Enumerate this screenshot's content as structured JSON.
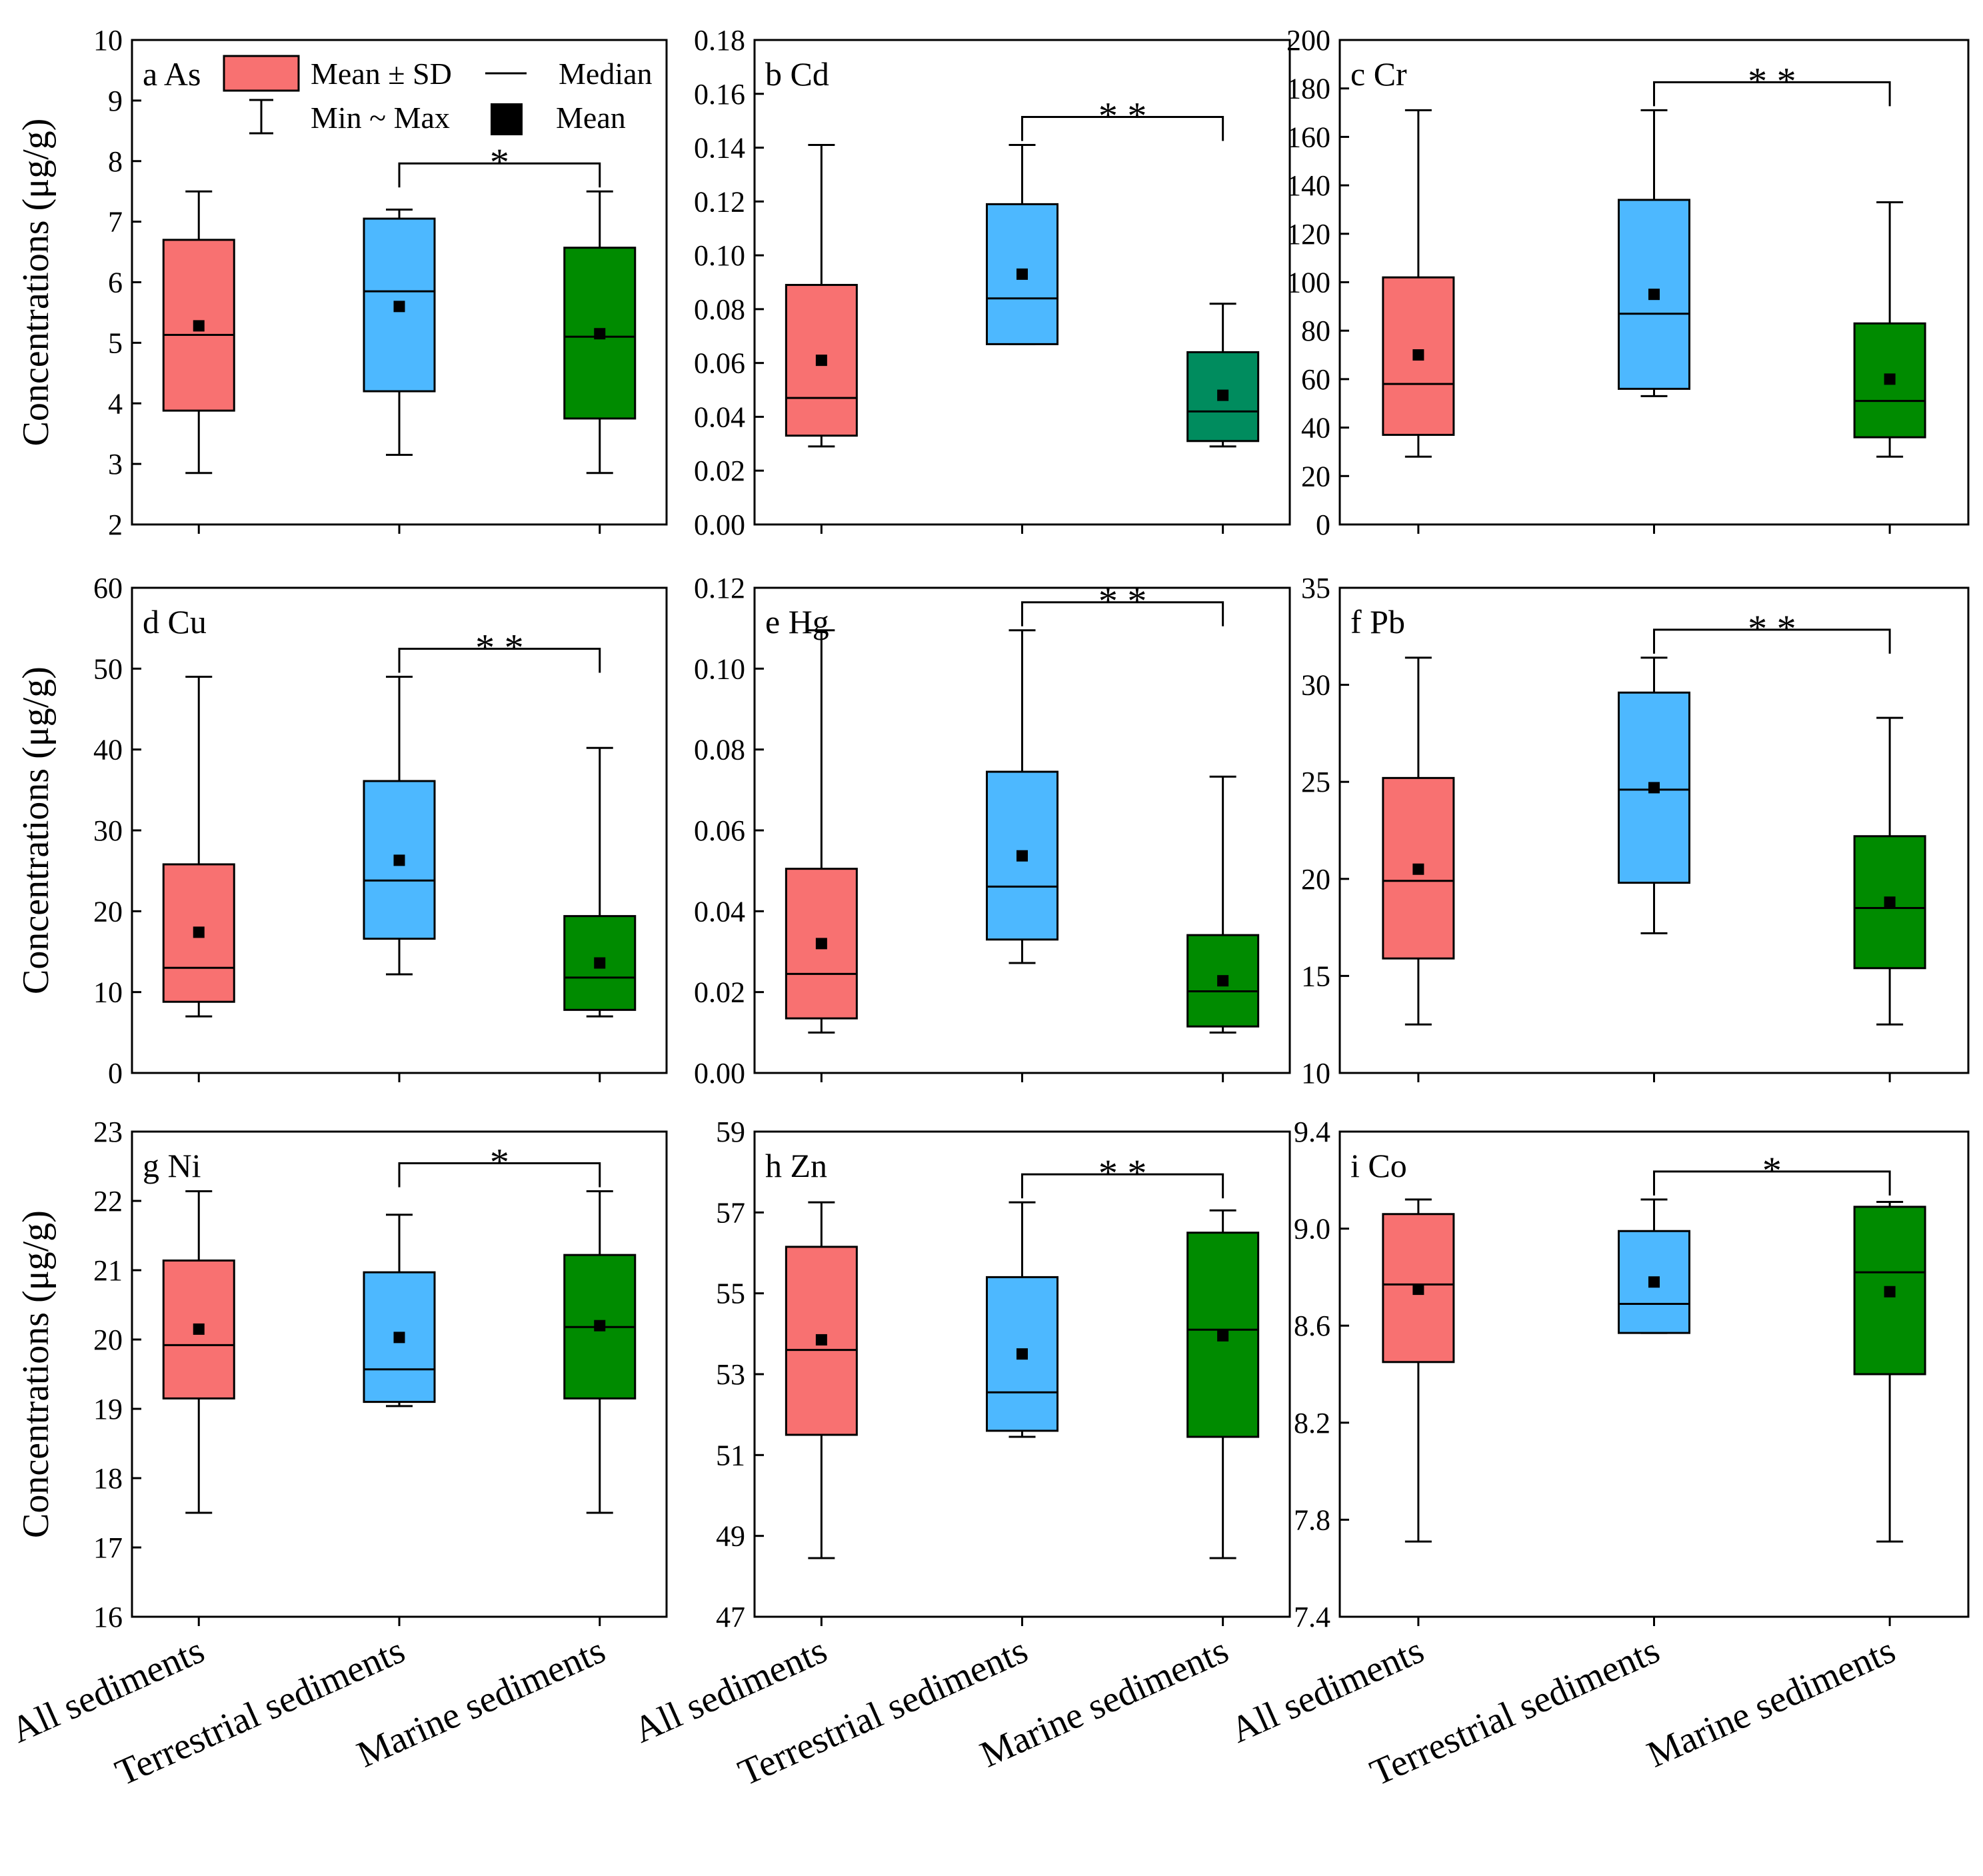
{
  "chart_data": {
    "type": "box",
    "categories": [
      "All sediments",
      "Terrestrial sediments",
      "Marine sediments"
    ],
    "ylabel": "Concentrations (μg/g)",
    "colors": {
      "All sediments": "#F87171",
      "Terrestrial sediments": "#4DB8FF",
      "Marine sediments": "#008B00",
      "Marine sediments (Cd)": "#008C5E"
    },
    "legend": {
      "box_label": "Mean ± SD",
      "median_label": "Median",
      "whisker_label": "Min ~ Max",
      "mean_label": "Mean"
    },
    "panels": [
      {
        "label": "a As",
        "ylim": [
          2,
          10
        ],
        "yticks": [
          "2",
          "3",
          "4",
          "5",
          "6",
          "7",
          "8",
          "9",
          "10"
        ],
        "significance": {
          "between": [
            "Terrestrial sediments",
            "Marine sediments"
          ],
          "marker": "*"
        },
        "groups": [
          {
            "name": "All sediments",
            "min": 2.85,
            "q1": 3.88,
            "median": 5.13,
            "q3": 6.7,
            "max": 7.5,
            "mean": 5.28
          },
          {
            "name": "Terrestrial sediments",
            "min": 3.15,
            "q1": 4.2,
            "median": 5.85,
            "q3": 7.05,
            "max": 7.2,
            "mean": 5.6
          },
          {
            "name": "Marine sediments",
            "min": 2.85,
            "q1": 3.75,
            "median": 5.1,
            "q3": 6.57,
            "max": 7.5,
            "mean": 5.15
          }
        ]
      },
      {
        "label": "b Cd",
        "ylim": [
          0,
          0.18
        ],
        "yticks": [
          "0.00",
          "0.02",
          "0.04",
          "0.06",
          "0.08",
          "0.10",
          "0.12",
          "0.14",
          "0.16",
          "0.18"
        ],
        "significance": {
          "between": [
            "Terrestrial sediments",
            "Marine sediments"
          ],
          "marker": "* *"
        },
        "groups": [
          {
            "name": "All sediments",
            "min": 0.029,
            "q1": 0.033,
            "median": 0.047,
            "q3": 0.089,
            "max": 0.141,
            "mean": 0.061
          },
          {
            "name": "Terrestrial sediments",
            "min": 0.067,
            "q1": 0.067,
            "median": 0.084,
            "q3": 0.119,
            "max": 0.141,
            "mean": 0.093
          },
          {
            "name": "Marine sediments",
            "min": 0.029,
            "q1": 0.031,
            "median": 0.042,
            "q3": 0.064,
            "max": 0.082,
            "mean": 0.048
          }
        ]
      },
      {
        "label": "c Cr",
        "ylim": [
          0,
          200
        ],
        "yticks": [
          "0",
          "20",
          "40",
          "60",
          "80",
          "100",
          "120",
          "140",
          "160",
          "180",
          "200"
        ],
        "significance": {
          "between": [
            "Terrestrial sediments",
            "Marine sediments"
          ],
          "marker": "* *"
        },
        "groups": [
          {
            "name": "All sediments",
            "min": 28,
            "q1": 37,
            "median": 58,
            "q3": 102,
            "max": 171,
            "mean": 70
          },
          {
            "name": "Terrestrial sediments",
            "min": 53,
            "q1": 56,
            "median": 87,
            "q3": 134,
            "max": 171,
            "mean": 95
          },
          {
            "name": "Marine sediments",
            "min": 28,
            "q1": 36,
            "median": 51,
            "q3": 83,
            "max": 133,
            "mean": 60
          }
        ]
      },
      {
        "label": "d Cu",
        "ylim": [
          0,
          60
        ],
        "yticks": [
          "0",
          "10",
          "20",
          "30",
          "40",
          "50",
          "60"
        ],
        "significance": {
          "between": [
            "Terrestrial sediments",
            "Marine sediments"
          ],
          "marker": "* *"
        },
        "groups": [
          {
            "name": "All sediments",
            "min": 7,
            "q1": 8.8,
            "median": 13,
            "q3": 25.8,
            "max": 49,
            "mean": 17.4
          },
          {
            "name": "Terrestrial sediments",
            "min": 12.2,
            "q1": 16.6,
            "median": 23.8,
            "q3": 36.1,
            "max": 49,
            "mean": 26.3
          },
          {
            "name": "Marine sediments",
            "min": 7,
            "q1": 7.8,
            "median": 11.8,
            "q3": 19.4,
            "max": 40.2,
            "mean": 13.6
          }
        ]
      },
      {
        "label": "e Hg",
        "ylim": [
          0,
          0.12
        ],
        "yticks": [
          "0.00",
          "0.02",
          "0.04",
          "0.06",
          "0.08",
          "0.10",
          "0.12"
        ],
        "significance": {
          "between": [
            "Terrestrial sediments",
            "Marine sediments"
          ],
          "marker": "* *"
        },
        "groups": [
          {
            "name": "All sediments",
            "min": 0.01,
            "q1": 0.0135,
            "median": 0.0245,
            "q3": 0.0505,
            "max": 0.1095,
            "mean": 0.032
          },
          {
            "name": "Terrestrial sediments",
            "min": 0.0272,
            "q1": 0.033,
            "median": 0.0461,
            "q3": 0.0745,
            "max": 0.1095,
            "mean": 0.0537
          },
          {
            "name": "Marine sediments",
            "min": 0.01,
            "q1": 0.0115,
            "median": 0.0202,
            "q3": 0.0341,
            "max": 0.0733,
            "mean": 0.0228
          }
        ]
      },
      {
        "label": "f Pb",
        "ylim": [
          10,
          35
        ],
        "yticks": [
          "10",
          "15",
          "20",
          "25",
          "30",
          "35"
        ],
        "significance": {
          "between": [
            "Terrestrial sediments",
            "Marine sediments"
          ],
          "marker": "* *"
        },
        "groups": [
          {
            "name": "All sediments",
            "min": 12.5,
            "q1": 15.9,
            "median": 19.9,
            "q3": 25.2,
            "max": 31.4,
            "mean": 20.5
          },
          {
            "name": "Terrestrial sediments",
            "min": 17.2,
            "q1": 19.8,
            "median": 24.6,
            "q3": 29.6,
            "max": 31.4,
            "mean": 24.7
          },
          {
            "name": "Marine sediments",
            "min": 12.5,
            "q1": 15.4,
            "median": 18.5,
            "q3": 22.2,
            "max": 28.3,
            "mean": 18.8
          }
        ]
      },
      {
        "label": "g Ni",
        "ylim": [
          16,
          23
        ],
        "yticks": [
          "16",
          "17",
          "18",
          "19",
          "20",
          "21",
          "22",
          "23"
        ],
        "significance": {
          "between": [
            "Terrestrial sediments",
            "Marine sediments"
          ],
          "marker": "*"
        },
        "groups": [
          {
            "name": "All sediments",
            "min": 17.5,
            "q1": 19.15,
            "median": 19.92,
            "q3": 21.14,
            "max": 22.14,
            "mean": 20.15
          },
          {
            "name": "Terrestrial sediments",
            "min": 19.04,
            "q1": 19.1,
            "median": 19.57,
            "q3": 20.97,
            "max": 21.8,
            "mean": 20.03
          },
          {
            "name": "Marine sediments",
            "min": 17.5,
            "q1": 19.15,
            "median": 20.18,
            "q3": 21.22,
            "max": 22.14,
            "mean": 20.2
          }
        ]
      },
      {
        "label": "h Zn",
        "ylim": [
          47,
          59
        ],
        "yticks": [
          "47",
          "49",
          "51",
          "53",
          "55",
          "57",
          "59"
        ],
        "significance": {
          "between": [
            "Terrestrial sediments",
            "Marine sediments"
          ],
          "marker": "* *"
        },
        "groups": [
          {
            "name": "All sediments",
            "min": 48.45,
            "q1": 51.5,
            "median": 53.6,
            "q3": 56.15,
            "max": 57.25,
            "mean": 53.85
          },
          {
            "name": "Terrestrial sediments",
            "min": 51.45,
            "q1": 51.6,
            "median": 52.55,
            "q3": 55.4,
            "max": 57.25,
            "mean": 53.5
          },
          {
            "name": "Marine sediments",
            "min": 48.45,
            "q1": 51.45,
            "median": 54.1,
            "q3": 56.5,
            "max": 57.05,
            "mean": 53.95
          }
        ]
      },
      {
        "label": "i Co",
        "ylim": [
          7.4,
          9.4
        ],
        "yticks": [
          "7.4",
          "7.8",
          "8.2",
          "8.6",
          "9.0",
          "9.4"
        ],
        "significance": {
          "between": [
            "Terrestrial sediments",
            "Marine sediments"
          ],
          "marker": "*"
        },
        "groups": [
          {
            "name": "All sediments",
            "min": 7.71,
            "q1": 8.45,
            "median": 8.77,
            "q3": 9.06,
            "max": 9.12,
            "mean": 8.75
          },
          {
            "name": "Terrestrial sediments",
            "min": 8.57,
            "q1": 8.57,
            "median": 8.69,
            "q3": 8.99,
            "max": 9.12,
            "mean": 8.78
          },
          {
            "name": "Marine sediments",
            "min": 7.71,
            "q1": 8.4,
            "median": 8.82,
            "q3": 9.09,
            "max": 9.11,
            "mean": 8.74
          }
        ]
      }
    ]
  }
}
